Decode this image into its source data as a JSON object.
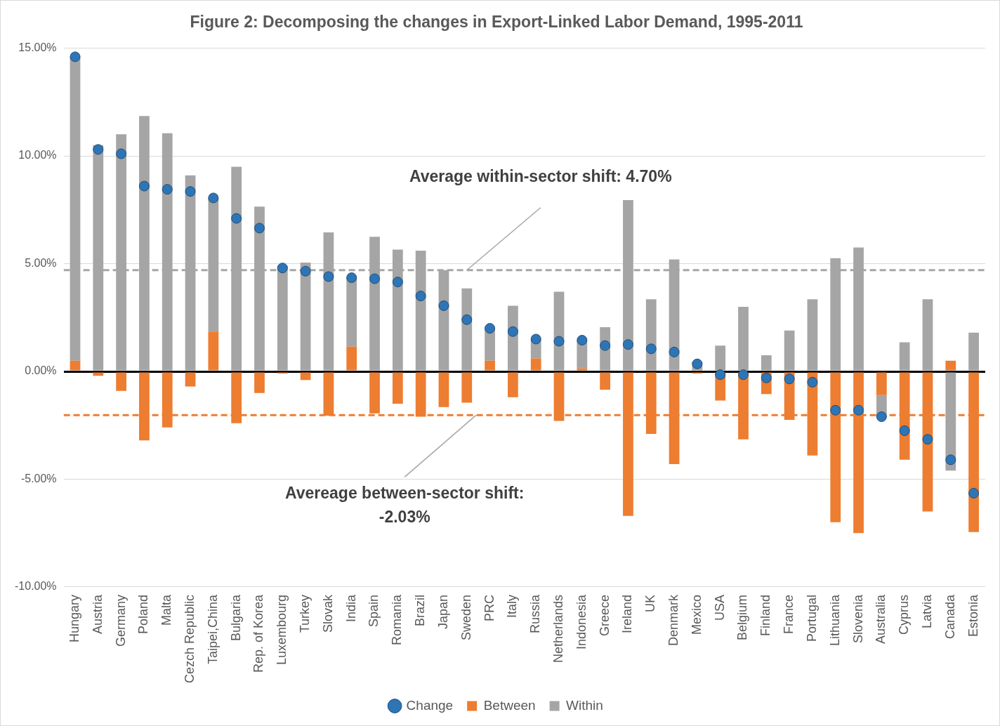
{
  "chart_data": {
    "type": "bar",
    "title": "Figure 2: Decomposing the changes in Export-Linked Labor Demand, 1995-2011",
    "categories": [
      "Hungary",
      "Austria",
      "Germany",
      "Poland",
      "Malta",
      "Cezch Republic",
      "Taipei,China",
      "Bulgaria",
      "Rep. of Korea",
      "Luxembourg",
      "Turkey",
      "Slovak",
      "India",
      "Spain",
      "Romania",
      "Brazil",
      "Japan",
      "Sweden",
      "PRC",
      "Italy",
      "Russia",
      "Netherlands",
      "Indonesia",
      "Greece",
      "Ireland",
      "UK",
      "Denmark",
      "Mexico",
      "USA",
      "Belgium",
      "Finland",
      "France",
      "Portugal",
      "Lithuania",
      "Slovenia",
      "Australia",
      "Cyprus",
      "Latvia",
      "Canada",
      "Estonia"
    ],
    "series": [
      {
        "name": "Between",
        "color": "#ed7d31",
        "values": [
          0.5,
          -0.2,
          -0.9,
          -3.2,
          -2.6,
          -0.7,
          1.85,
          -2.4,
          -1.0,
          -0.1,
          -0.4,
          -2.05,
          1.15,
          -1.95,
          -1.5,
          -2.1,
          -1.65,
          -1.45,
          0.5,
          -1.2,
          0.6,
          -2.3,
          0.15,
          -0.85,
          -6.7,
          -2.9,
          -4.3,
          -0.1,
          -1.35,
          -3.15,
          -1.05,
          -2.25,
          -3.9,
          -7.0,
          -7.5,
          -1.1,
          -4.1,
          -6.5,
          0.5,
          -7.45
        ]
      },
      {
        "name": "Within",
        "color": "#a5a5a5",
        "values": [
          14.1,
          10.5,
          11.0,
          11.85,
          11.05,
          9.1,
          6.2,
          9.5,
          7.65,
          4.9,
          5.05,
          6.45,
          3.2,
          6.25,
          5.65,
          5.6,
          4.7,
          3.85,
          1.5,
          3.05,
          0.9,
          3.7,
          1.3,
          2.05,
          7.95,
          3.35,
          5.2,
          0.45,
          1.2,
          3.0,
          0.75,
          1.9,
          3.35,
          5.25,
          5.75,
          -1.0,
          1.35,
          3.35,
          -4.6,
          1.8
        ]
      },
      {
        "name": "Change",
        "color": "#2e75b6",
        "type": "scatter",
        "marker": "circle",
        "values": [
          14.6,
          10.3,
          10.1,
          8.6,
          8.45,
          8.35,
          8.05,
          7.1,
          6.65,
          4.8,
          4.65,
          4.4,
          4.35,
          4.3,
          4.15,
          3.5,
          3.05,
          2.4,
          2.0,
          1.85,
          1.5,
          1.4,
          1.45,
          1.2,
          1.25,
          1.05,
          0.9,
          0.35,
          -0.15,
          -0.15,
          -0.3,
          -0.35,
          -0.5,
          -1.8,
          -1.8,
          -2.1,
          -2.75,
          -3.15,
          -4.1,
          -5.65
        ]
      }
    ],
    "ylim": [
      -10,
      15
    ],
    "yticks": [
      {
        "value": -10,
        "label": "-10.00%"
      },
      {
        "value": -5,
        "label": "-5.00%"
      },
      {
        "value": 0,
        "label": "0.00%"
      },
      {
        "value": 5,
        "label": "5.00%"
      },
      {
        "value": 10,
        "label": "10.00%"
      },
      {
        "value": 15,
        "label": "15.00%"
      }
    ],
    "annotations": [
      {
        "text": [
          "Average within-sector shift: 4.70%"
        ],
        "value": 4.7,
        "color": "#a6a6a6"
      },
      {
        "text": [
          "Avereage between-sector shift:",
          "-2.03%"
        ],
        "value": -2.03,
        "color": "#ed7d31"
      }
    ],
    "stacked": true,
    "grid": true,
    "legend": "bottom"
  }
}
